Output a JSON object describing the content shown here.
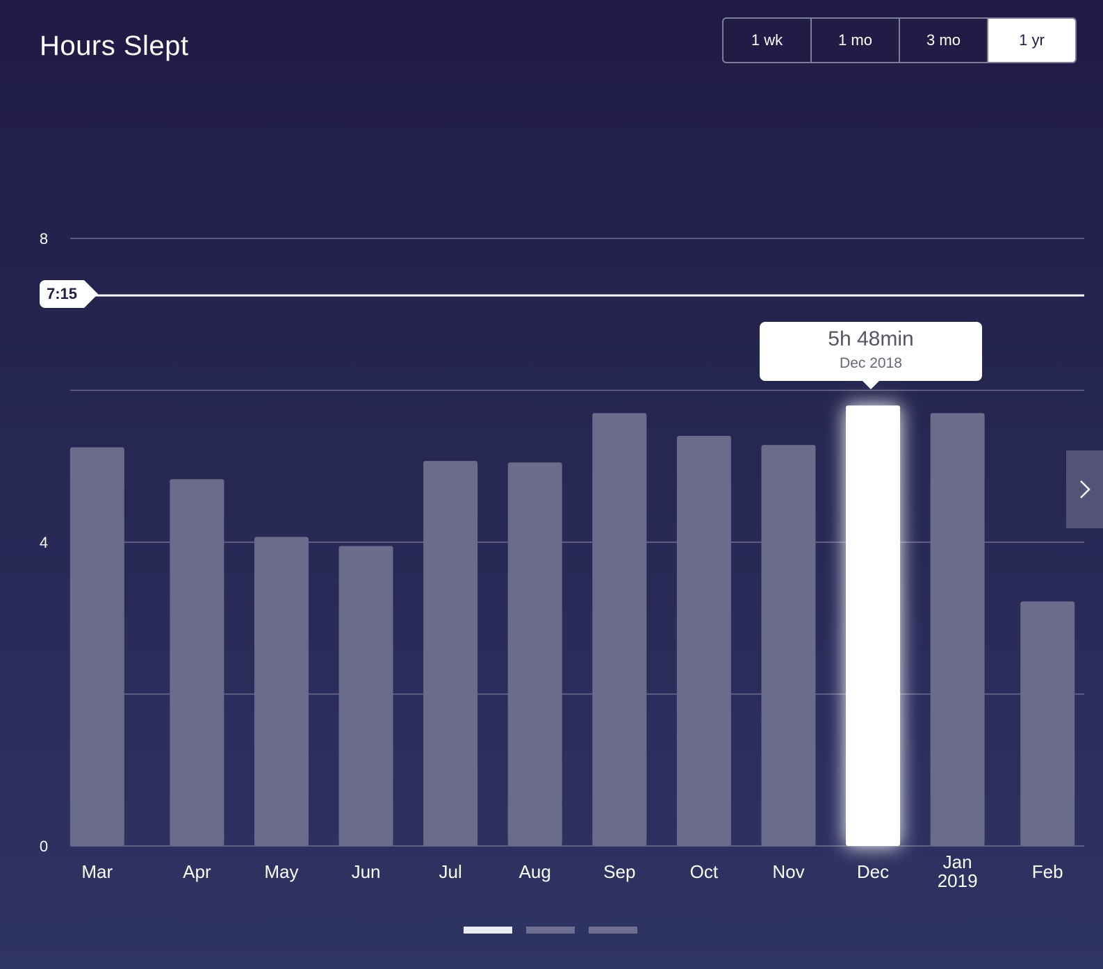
{
  "header": {
    "title": "Hours Slept"
  },
  "range_selector": {
    "options": [
      "1 wk",
      "1 mo",
      "3 mo",
      "1 yr"
    ],
    "selected": "1 yr"
  },
  "goal": {
    "label": "7:15",
    "value_hours": 7.25
  },
  "tooltip": {
    "value": "5h 48min",
    "date": "Dec 2018"
  },
  "pager": {
    "count": 3,
    "active_index": 0
  },
  "colors": {
    "bar": "#6b6b8b",
    "bar_selected": "#ffffff",
    "gridline": "#6e6e90",
    "goal_line": "#ffffff"
  },
  "chart_data": {
    "type": "bar",
    "title": "Hours Slept",
    "xlabel": "",
    "ylabel": "",
    "ylim": [
      0,
      8
    ],
    "yticks": [
      0,
      4,
      8
    ],
    "grid": true,
    "categories": [
      "Mar",
      "Apr",
      "May",
      "Jun",
      "Jul",
      "Aug",
      "Sep",
      "Oct",
      "Nov",
      "Dec",
      "Jan 2019",
      "Feb"
    ],
    "category_labels": [
      [
        "Mar"
      ],
      [
        "Apr"
      ],
      [
        "May"
      ],
      [
        "Jun"
      ],
      [
        "Jul"
      ],
      [
        "Aug"
      ],
      [
        "Sep"
      ],
      [
        "Oct"
      ],
      [
        "Nov"
      ],
      [
        "Dec"
      ],
      [
        "Jan",
        "2019"
      ],
      [
        "Feb"
      ]
    ],
    "values": [
      5.25,
      4.83,
      4.07,
      3.95,
      5.07,
      5.05,
      5.7,
      5.4,
      5.28,
      5.8,
      5.7,
      3.22
    ],
    "selected_index": 9,
    "reference_line": {
      "value": 7.25,
      "label": "7:15"
    }
  }
}
